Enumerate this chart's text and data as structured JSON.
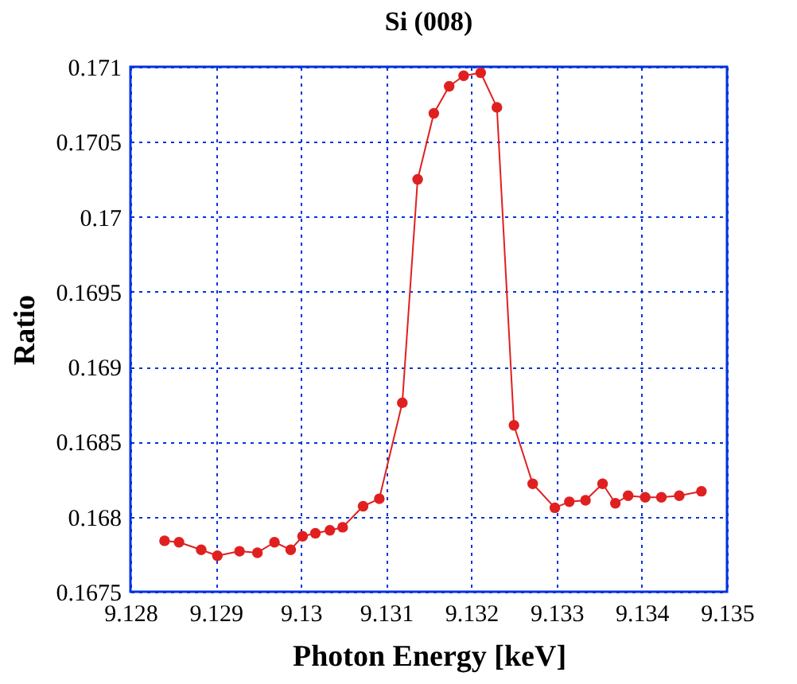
{
  "chart_data": {
    "type": "line",
    "title": "Si (008)",
    "xlabel": "Photon Energy [keV]",
    "ylabel": "Ratio",
    "x": [
      9.1284,
      9.12857,
      9.12883,
      9.12902,
      9.12928,
      9.12949,
      9.12969,
      9.12988,
      9.13002,
      9.13017,
      9.13034,
      9.13049,
      9.13073,
      9.13092,
      9.13119,
      9.13137,
      9.13156,
      9.13174,
      9.13191,
      9.13211,
      9.1323,
      9.1325,
      9.13272,
      9.13298,
      9.13315,
      9.13334,
      9.13354,
      9.13369,
      9.13384,
      9.13404,
      9.13423,
      9.13444,
      9.1347
    ],
    "series": [
      {
        "color": "#e02020",
        "values": [
          0.16784,
          0.16783,
          0.16778,
          0.16774,
          0.16777,
          0.16776,
          0.16783,
          0.16778,
          0.16787,
          0.16789,
          0.16791,
          0.16793,
          0.16807,
          0.16812,
          0.16876,
          0.17025,
          0.17069,
          0.17087,
          0.17094,
          0.17096,
          0.17073,
          0.16861,
          0.16822,
          0.16806,
          0.1681,
          0.16811,
          0.16822,
          0.16809,
          0.16814,
          0.16813,
          0.16813,
          0.16814,
          0.16817
        ]
      }
    ],
    "xlim": [
      9.128,
      9.135
    ],
    "xticks": [
      9.128,
      9.129,
      9.13,
      9.131,
      9.132,
      9.133,
      9.134,
      9.135
    ],
    "ylim": [
      0.1675,
      0.171
    ],
    "yticks": [
      0.1675,
      0.168,
      0.1685,
      0.169,
      0.1695,
      0.17,
      0.1705,
      0.171
    ],
    "grid": true,
    "marker": "circle",
    "line_style": "solid"
  }
}
